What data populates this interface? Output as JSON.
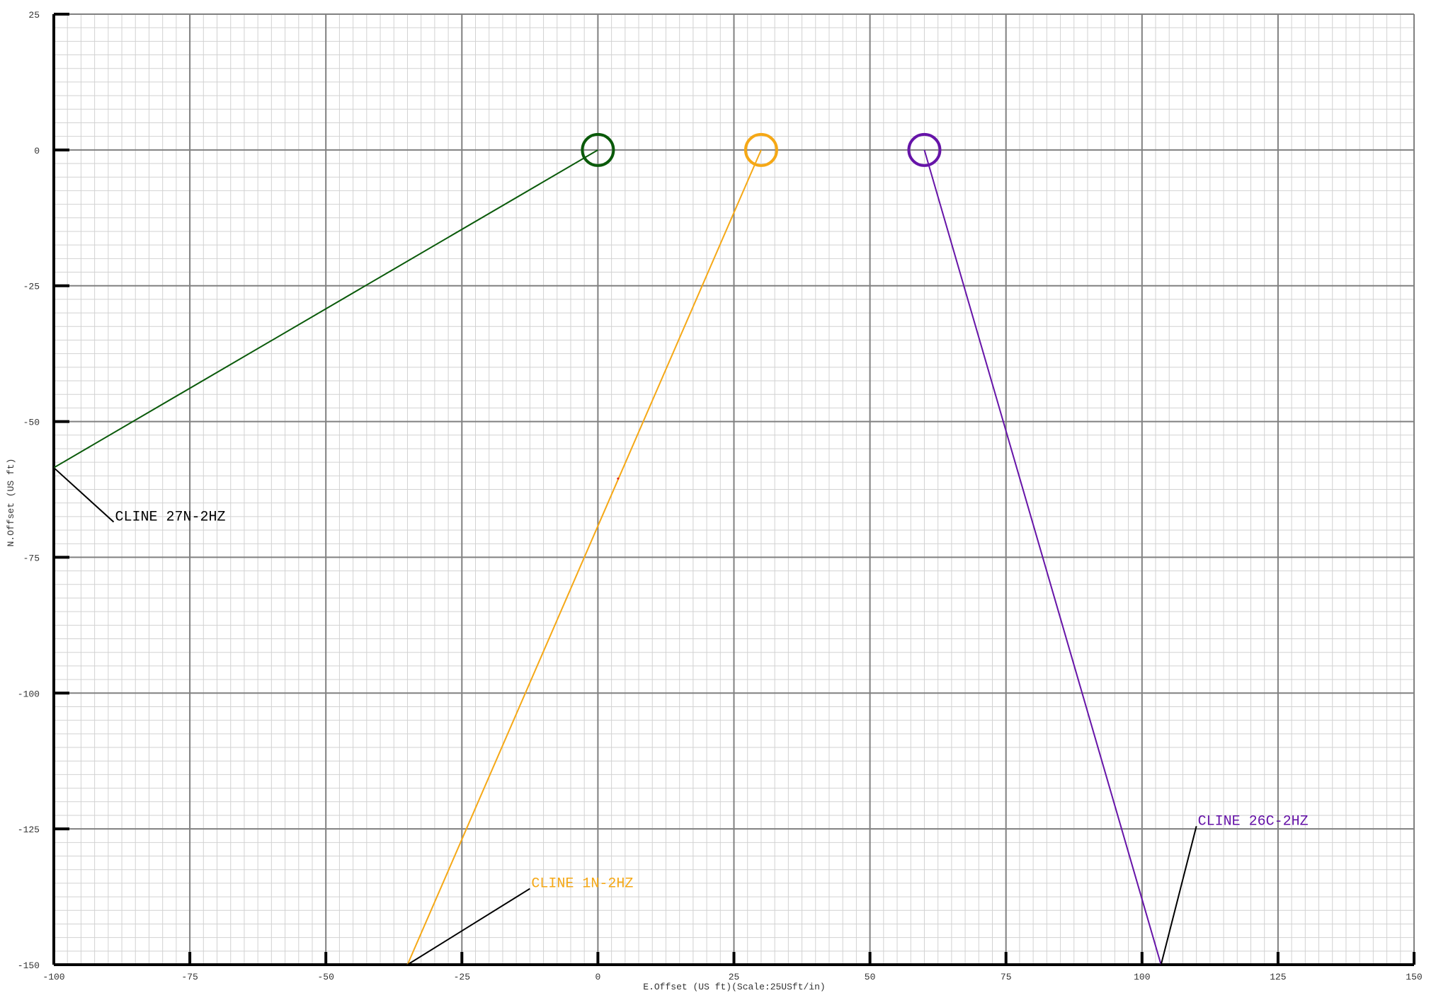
{
  "chart_data": {
    "type": "line",
    "title": "",
    "xlabel": "E.Offset (US ft)(Scale:25USft/in)",
    "ylabel": "N.Offset (US ft)",
    "xlim": [
      -100,
      150
    ],
    "ylim": [
      -150,
      25
    ],
    "x_ticks": [
      -100,
      -75,
      -50,
      -25,
      0,
      25,
      50,
      75,
      100,
      125,
      150
    ],
    "y_ticks": [
      25,
      0,
      -25,
      -50,
      -75,
      -100,
      -125,
      -150
    ],
    "x_tick_labels": [
      "-100",
      "-75",
      "-50",
      "-25",
      "0",
      "25",
      "50",
      "75",
      "100",
      "125",
      "150"
    ],
    "y_tick_labels": [
      "25",
      "0",
      "-25",
      "-50",
      "-75",
      "-100",
      "-125",
      "-150"
    ],
    "major_grid_step": 25,
    "minor_grid_step": 2.5,
    "grid": true,
    "series": [
      {
        "name": "CLINE 27N-2HZ",
        "color": "#0a5a0a",
        "x": [
          0,
          -100
        ],
        "y": [
          0,
          -58.5
        ],
        "label_anchor": [
          -100,
          -58.5
        ],
        "label_at": [
          -89,
          -68.5
        ]
      },
      {
        "name": "CLINE 1N-2HZ",
        "color": "#f5a816",
        "x": [
          30,
          -35
        ],
        "y": [
          0,
          -150
        ],
        "label_anchor": [
          -35,
          -150
        ],
        "label_at": [
          -12.5,
          -136
        ]
      },
      {
        "name": "CLINE 26C-2HZ",
        "color": "#6614a8",
        "x": [
          60,
          103.5
        ],
        "y": [
          0,
          -150
        ],
        "label_anchor": [
          103.5,
          -150
        ],
        "label_at": [
          110,
          -124.5
        ]
      }
    ],
    "marker": {
      "type": "circle",
      "x": 3.7,
      "y": -60.5,
      "color": "#e02020"
    }
  }
}
